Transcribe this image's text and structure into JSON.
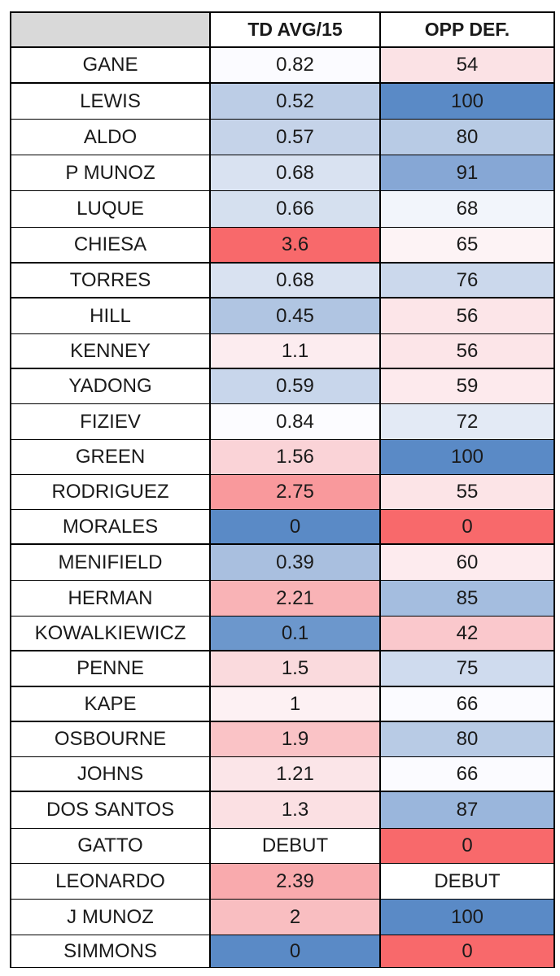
{
  "headers": [
    "",
    "TD AVG/15",
    "OPP DEF."
  ],
  "rows": [
    {
      "name": "GANE",
      "td_avg": "0.82",
      "opp_def": "54",
      "td_color": "#fbfbff",
      "opp_color": "#fbe2e5"
    },
    {
      "name": "LEWIS",
      "td_avg": "0.52",
      "opp_def": "100",
      "td_color": "#bccde6",
      "opp_color": "#5a8ac6"
    },
    {
      "name": "ALDO",
      "td_avg": "0.57",
      "opp_def": "80",
      "td_color": "#c5d3e9",
      "opp_color": "#b8cbe5"
    },
    {
      "name": "P MUNOZ",
      "td_avg": "0.68",
      "opp_def": "91",
      "td_color": "#d9e2f1",
      "opp_color": "#86a7d5"
    },
    {
      "name": "LUQUE",
      "td_avg": "0.66",
      "opp_def": "68",
      "td_color": "#d5e0ef",
      "opp_color": "#f2f5fb"
    },
    {
      "name": "CHIESA",
      "td_avg": "3.6",
      "opp_def": "65",
      "td_color": "#f8696b",
      "opp_color": "#fdf3f5"
    },
    {
      "name": "TORRES",
      "td_avg": "0.68",
      "opp_def": "76",
      "td_color": "#d9e2f1",
      "opp_color": "#cbd8ec"
    },
    {
      "name": "HILL",
      "td_avg": "0.45",
      "opp_def": "56",
      "td_color": "#b0c5e2",
      "opp_color": "#fce5e8"
    },
    {
      "name": "KENNEY",
      "td_avg": "1.1",
      "opp_def": "56",
      "td_color": "#fcecef",
      "opp_color": "#fce5e8"
    },
    {
      "name": "YADONG",
      "td_avg": "0.59",
      "opp_def": "59",
      "td_color": "#c8d6eb",
      "opp_color": "#fdeaed"
    },
    {
      "name": "FIZIEV",
      "td_avg": "0.84",
      "opp_def": "72",
      "td_color": "#fcfcff",
      "opp_color": "#e3eaf5"
    },
    {
      "name": "GREEN",
      "td_avg": "1.56",
      "opp_def": "100",
      "td_color": "#fad3d7",
      "opp_color": "#5a8ac6"
    },
    {
      "name": "RODRIGUEZ",
      "td_avg": "2.75",
      "opp_def": "55",
      "td_color": "#f9999c",
      "opp_color": "#fce4e7"
    },
    {
      "name": "MORALES",
      "td_avg": "0",
      "opp_def": "0",
      "td_color": "#5a8ac6",
      "opp_color": "#f8696b"
    },
    {
      "name": "MENIFIELD",
      "td_avg": "0.39",
      "opp_def": "60",
      "td_color": "#a9bfdf",
      "opp_color": "#fdebee"
    },
    {
      "name": "HERMAN",
      "td_avg": "2.21",
      "opp_def": "85",
      "td_color": "#f9b3b6",
      "opp_color": "#a4bddf"
    },
    {
      "name": "KOWALKIEWICZ",
      "td_avg": "0.1",
      "opp_def": "42",
      "td_color": "#6c97cc",
      "opp_color": "#fac8cc"
    },
    {
      "name": "PENNE",
      "td_avg": "1.5",
      "opp_def": "75",
      "td_color": "#fadadd",
      "opp_color": "#cfdbee"
    },
    {
      "name": "KAPE",
      "td_avg": "1",
      "opp_def": "66",
      "td_color": "#fdf1f3",
      "opp_color": "#fbfbff"
    },
    {
      "name": "OSBOURNE",
      "td_avg": "1.9",
      "opp_def": "80",
      "td_color": "#fac3c6",
      "opp_color": "#b8cbe5"
    },
    {
      "name": "JOHNS",
      "td_avg": "1.21",
      "opp_def": "66",
      "td_color": "#fbe5e8",
      "opp_color": "#fbfbff"
    },
    {
      "name": "DOS SANTOS",
      "td_avg": "1.3",
      "opp_def": "87",
      "td_color": "#fbe0e3",
      "opp_color": "#9ab6dc"
    },
    {
      "name": "GATTO",
      "td_avg": "DEBUT",
      "opp_def": "0",
      "td_color": "#ffffff",
      "opp_color": "#f8696b"
    },
    {
      "name": "LEONARDO",
      "td_avg": "2.39",
      "opp_def": "DEBUT",
      "td_color": "#f9aaad",
      "opp_color": "#ffffff"
    },
    {
      "name": "J MUNOZ",
      "td_avg": "2",
      "opp_def": "100",
      "td_color": "#f9bec1",
      "opp_color": "#5a8ac6"
    },
    {
      "name": "SIMMONS",
      "td_avg": "0",
      "opp_def": "0",
      "td_color": "#5a8ac6",
      "opp_color": "#f8696b"
    }
  ]
}
